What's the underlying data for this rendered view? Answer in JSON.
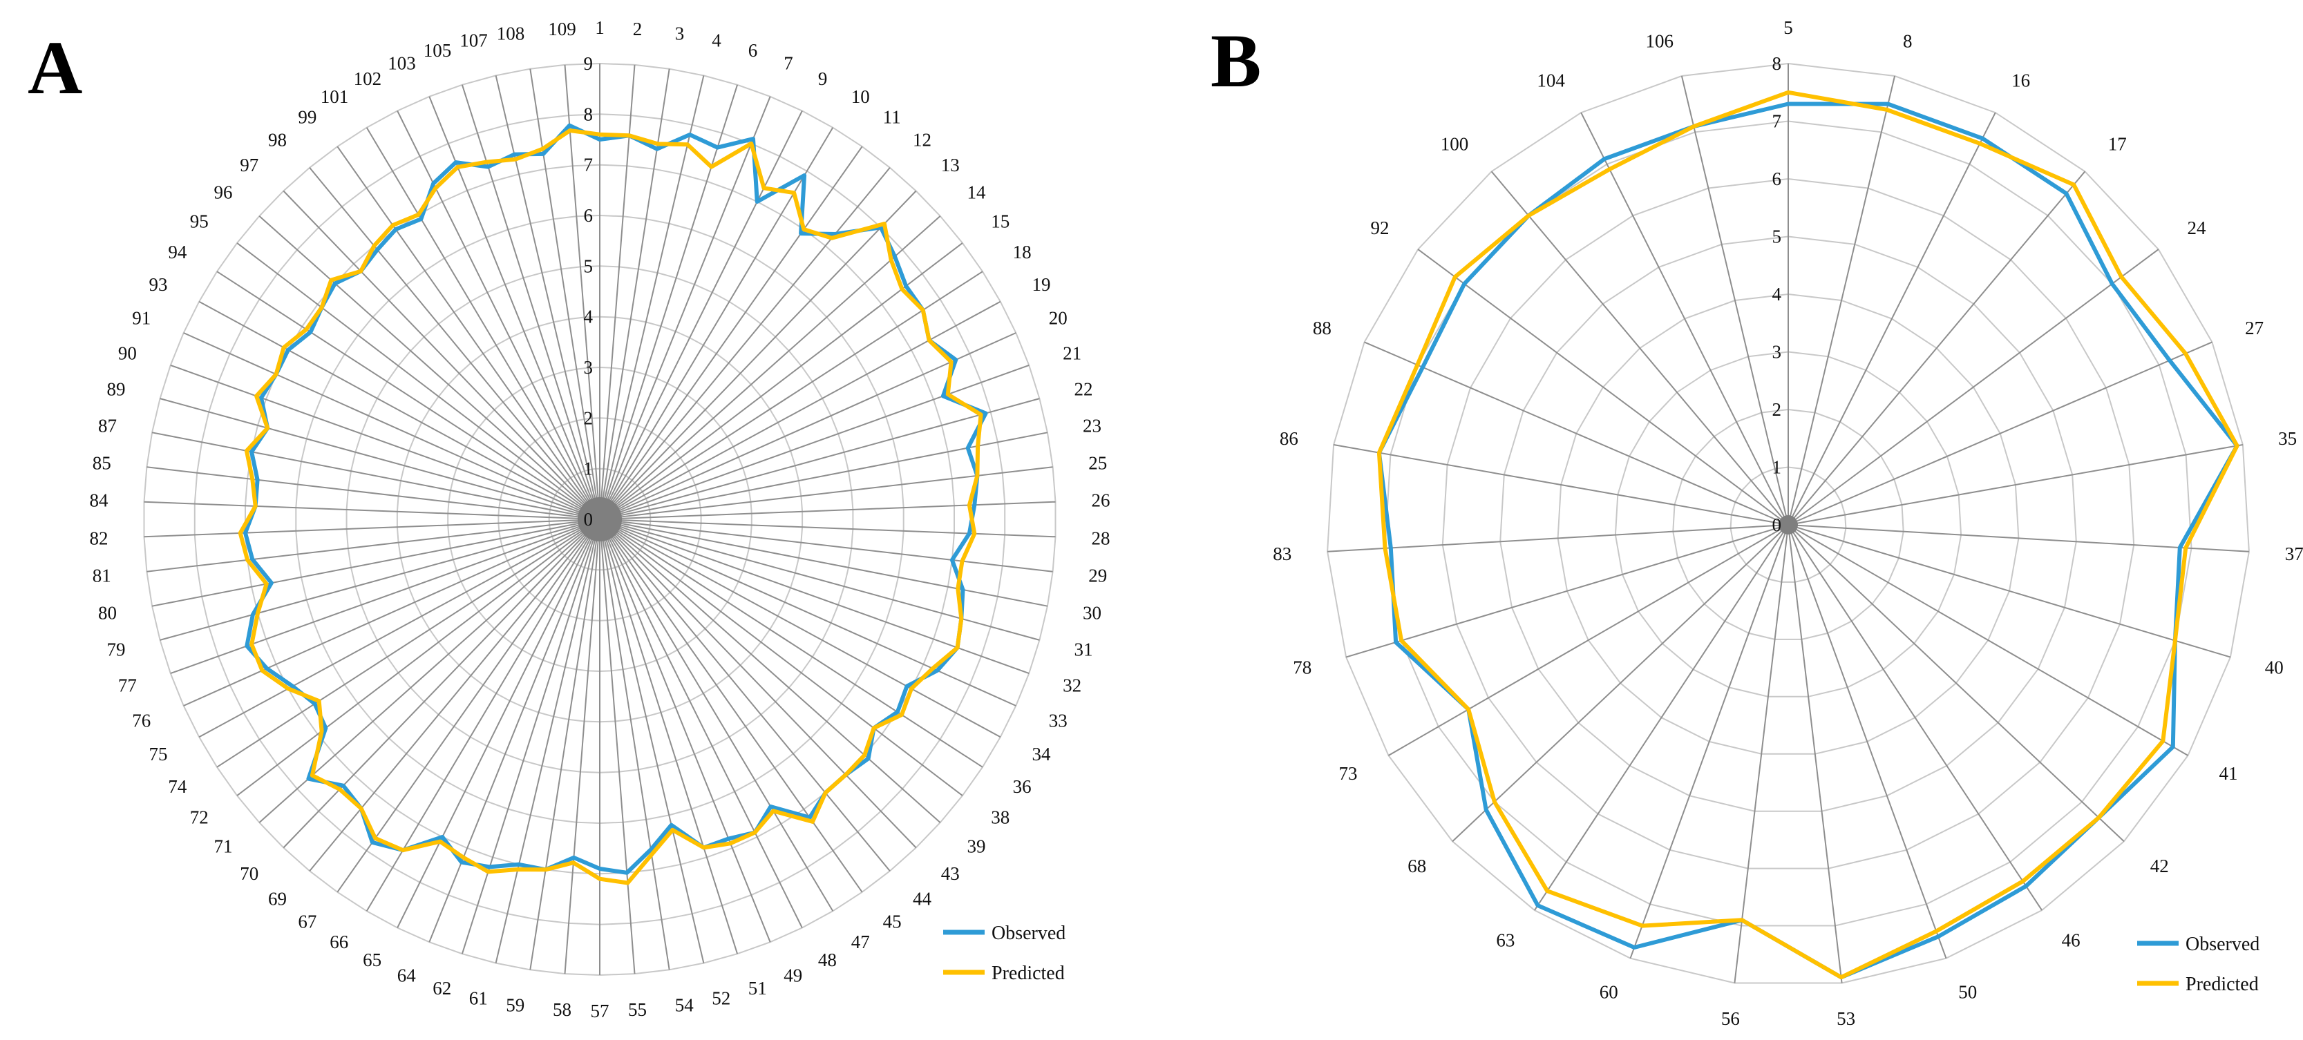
{
  "chart_data": [
    {
      "type": "radar",
      "panel": "A",
      "range": [
        0,
        9
      ],
      "ticks": [
        "0",
        "1",
        "2",
        "3",
        "4",
        "5",
        "6",
        "7",
        "8",
        "9"
      ],
      "categories": [
        "1",
        "2",
        "3",
        "4",
        "6",
        "7",
        "9",
        "10",
        "11",
        "12",
        "13",
        "14",
        "15",
        "18",
        "19",
        "20",
        "21",
        "22",
        "23",
        "25",
        "26",
        "28",
        "29",
        "30",
        "31",
        "32",
        "33",
        "34",
        "36",
        "38",
        "39",
        "43",
        "44",
        "45",
        "47",
        "48",
        "49",
        "51",
        "52",
        "54",
        "55",
        "57",
        "58",
        "59",
        "61",
        "62",
        "64",
        "65",
        "66",
        "67",
        "69",
        "70",
        "71",
        "72",
        "74",
        "75",
        "76",
        "77",
        "79",
        "80",
        "81",
        "82",
        "84",
        "85",
        "87",
        "89",
        "90",
        "91",
        "93",
        "94",
        "95",
        "96",
        "97",
        "98",
        "99",
        "101",
        "102",
        "103",
        "105",
        "107",
        "108",
        "109"
      ],
      "series": [
        {
          "name": "Observed",
          "color": "#2E9BD6",
          "values": [
            7.5,
            7.6,
            7.4,
            7.8,
            7.7,
            8.1,
            7.0,
            7.9,
            6.9,
            7.3,
            8.0,
            7.8,
            7.6,
            7.6,
            7.4,
            7.7,
            7.2,
            7.9,
            7.4,
            7.5,
            7.4,
            7.3,
            7.0,
            7.3,
            7.4,
            7.5,
            7.3,
            6.9,
            7.0,
            6.8,
            7.1,
            7.0,
            7.0,
            7.2,
            6.6,
            6.9,
            6.8,
            6.8,
            6.2,
            6.6,
            7.0,
            6.9,
            6.7,
            7.0,
            7.0,
            7.2,
            7.3,
            7.0,
            7.6,
            7.8,
            7.4,
            7.3,
            7.7,
            6.8,
            6.7,
            6.9,
            7.2,
            7.4,
            7.1,
            6.6,
            6.9,
            7.0,
            6.8,
            6.8,
            7.0,
            6.8,
            7.1,
            7.0,
            7.0,
            6.8,
            6.9,
            7.0,
            6.8,
            6.9,
            7.0,
            6.9,
            7.4,
            7.6,
            7.3,
            7.4,
            7.3,
            7.8
          ]
        },
        {
          "name": "Predicted",
          "color": "#FFC000",
          "values": [
            7.6,
            7.6,
            7.5,
            7.6,
            7.3,
            8.0,
            7.3,
            7.5,
            7.0,
            7.2,
            8.1,
            7.7,
            7.5,
            7.6,
            7.4,
            7.6,
            7.3,
            7.8,
            7.6,
            7.5,
            7.3,
            7.4,
            7.2,
            7.2,
            7.4,
            7.5,
            7.2,
            7.0,
            7.1,
            6.8,
            7.0,
            7.0,
            7.0,
            7.3,
            6.7,
            6.9,
            6.9,
            6.8,
            6.3,
            6.7,
            7.2,
            7.1,
            6.8,
            7.0,
            7.1,
            7.3,
            7.2,
            7.1,
            7.6,
            7.7,
            7.4,
            7.4,
            7.6,
            6.9,
            6.6,
            7.0,
            7.3,
            7.3,
            7.0,
            6.7,
            7.0,
            7.1,
            6.8,
            6.9,
            7.1,
            6.8,
            7.2,
            7.0,
            7.1,
            6.9,
            6.9,
            7.1,
            6.8,
            7.0,
            7.1,
            7.0,
            7.3,
            7.5,
            7.4,
            7.3,
            7.4,
            7.7
          ]
        }
      ]
    },
    {
      "type": "radar",
      "panel": "B",
      "range": [
        0,
        8
      ],
      "ticks": [
        "0",
        "1",
        "2",
        "3",
        "4",
        "5",
        "6",
        "7",
        "8"
      ],
      "categories": [
        "5",
        "8",
        "16",
        "17",
        "24",
        "27",
        "35",
        "37",
        "40",
        "41",
        "42",
        "46",
        "50",
        "53",
        "56",
        "60",
        "63",
        "68",
        "73",
        "78",
        "83",
        "86",
        "88",
        "92",
        "100",
        "104",
        "106"
      ],
      "series": [
        {
          "name": "Observed",
          "color": "#2E9BD6",
          "values": [
            7.3,
            7.5,
            7.5,
            7.5,
            7.0,
            7.2,
            7.9,
            6.8,
            7.0,
            7.7,
            7.4,
            7.5,
            7.6,
            7.9,
            6.9,
            7.8,
            7.9,
            7.2,
            6.4,
            7.1,
            6.9,
            7.2,
            6.9,
            7.0,
            7.0,
            7.1,
            7.1
          ]
        },
        {
          "name": "Predicted",
          "color": "#FFC000",
          "values": [
            7.5,
            7.4,
            7.4,
            7.7,
            7.2,
            7.5,
            7.9,
            6.9,
            7.0,
            7.5,
            7.4,
            7.4,
            7.5,
            7.9,
            6.9,
            7.4,
            7.6,
            7.0,
            6.4,
            7.0,
            7.0,
            7.2,
            7.0,
            7.2,
            7.0,
            6.9,
            7.1
          ]
        }
      ]
    }
  ],
  "legend": [
    {
      "label": "Observed",
      "color": "#2E9BD6"
    },
    {
      "label": "Predicted",
      "color": "#FFC000"
    }
  ]
}
